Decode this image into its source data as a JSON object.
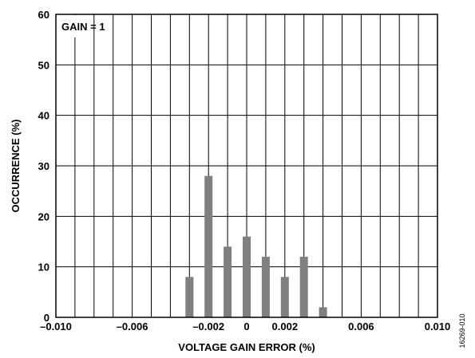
{
  "chart_data": {
    "type": "bar",
    "legend_label": "GAIN = 1",
    "xlabel": "VOLTAGE GAIN ERROR (%)",
    "ylabel": "OCCURRENCE (%)",
    "xlim": [
      -0.01,
      0.01
    ],
    "ylim": [
      0,
      60
    ],
    "x_tick_labels": [
      {
        "value": -0.01,
        "label": "–0.010"
      },
      {
        "value": -0.006,
        "label": "–0.006"
      },
      {
        "value": -0.002,
        "label": "–0.002"
      },
      {
        "value": 0,
        "label": "0"
      },
      {
        "value": 0.002,
        "label": "0.002"
      },
      {
        "value": 0.006,
        "label": "0.006"
      },
      {
        "value": 0.01,
        "label": "0.010"
      }
    ],
    "y_ticks": [
      0,
      10,
      20,
      30,
      40,
      50,
      60
    ],
    "x_gridlines_count": 20,
    "grid": true,
    "bars": [
      {
        "x": -0.003,
        "y": 8
      },
      {
        "x": -0.002,
        "y": 28
      },
      {
        "x": -0.001,
        "y": 14
      },
      {
        "x": 0.0,
        "y": 16
      },
      {
        "x": 0.001,
        "y": 12
      },
      {
        "x": 0.002,
        "y": 8
      },
      {
        "x": 0.003,
        "y": 12
      },
      {
        "x": 0.004,
        "y": 2
      }
    ],
    "bar_color": "#808080",
    "figure_id": "16269-010"
  }
}
